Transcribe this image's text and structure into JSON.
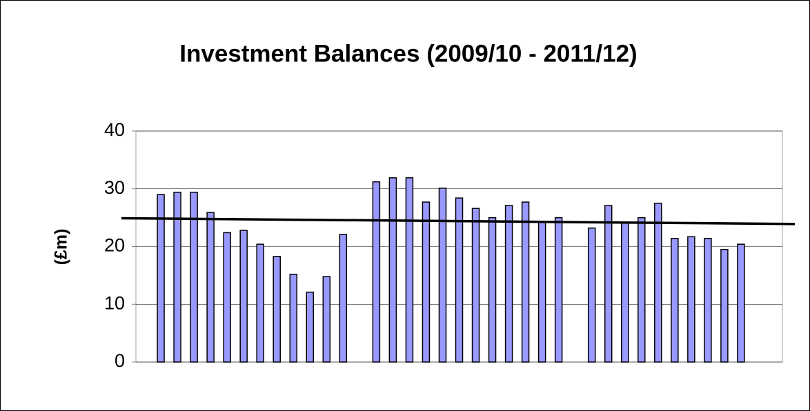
{
  "chart_data": {
    "type": "bar",
    "title": "Investment Balances (2009/10 - 2011/12)",
    "y_label": "(£m)",
    "categories": [
      null,
      null,
      null,
      null,
      null,
      null,
      null,
      null,
      null,
      null,
      null,
      null,
      null,
      null,
      null,
      null,
      null,
      null,
      null,
      null,
      null,
      null,
      null,
      null,
      null,
      null,
      null,
      null,
      null,
      null,
      null,
      null,
      null,
      null,
      null,
      null,
      null,
      null,
      null
    ],
    "values": [
      null,
      29.0,
      29.4,
      29.4,
      25.9,
      22.4,
      22.8,
      20.4,
      18.3,
      15.2,
      12.1,
      14.8,
      22.1,
      null,
      31.2,
      31.9,
      31.9,
      27.7,
      30.1,
      28.4,
      26.6,
      25.0,
      27.1,
      27.7,
      24.2,
      25.0,
      null,
      23.2,
      27.1,
      24.2,
      25.0,
      27.5,
      21.4,
      21.7,
      21.4,
      19.5,
      20.4,
      null,
      null
    ],
    "color": "#9999ff",
    "trendline": {
      "values": [
        24.9,
        23.9
      ],
      "color": "#000000"
    },
    "ylim": [
      0,
      40
    ],
    "yticks": [
      0,
      10,
      20,
      30,
      40
    ],
    "grid": true
  }
}
